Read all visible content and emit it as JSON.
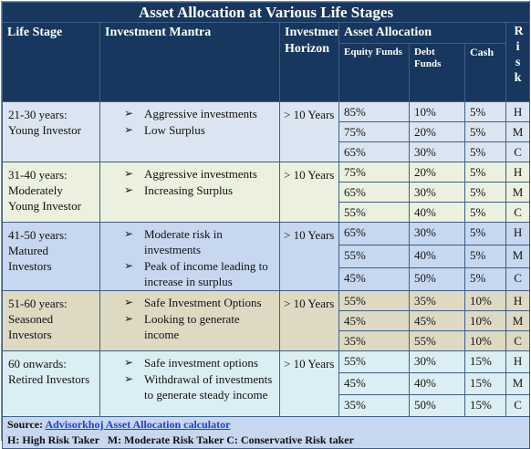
{
  "title": "Asset Allocation at Various Life Stages",
  "headers": {
    "life_stage": "Life Stage",
    "mantra": "Investment Mantra",
    "horizon": "Investment Horizon",
    "allocation": "Asset Allocation",
    "risk": "Risk",
    "equity": "Equity Funds",
    "debt": "Debt Funds",
    "cash": "Cash"
  },
  "stages": [
    {
      "stage": "21-30 years: Young Investor",
      "mantra": [
        "Aggressive investments",
        "Low Surplus"
      ],
      "horizon": "> 10 Years",
      "rows": [
        {
          "equity": "85%",
          "debt": "10%",
          "cash": "5%",
          "risk": "H"
        },
        {
          "equity": "75%",
          "debt": "20%",
          "cash": "5%",
          "risk": "M"
        },
        {
          "equity": "65%",
          "debt": "30%",
          "cash": "5%",
          "risk": "C"
        }
      ]
    },
    {
      "stage": "31-40 years: Moderately Young Investor",
      "mantra": [
        "Aggressive investments",
        "Increasing Surplus"
      ],
      "horizon": "> 10 Years",
      "rows": [
        {
          "equity": "75%",
          "debt": "20%",
          "cash": "5%",
          "risk": "H"
        },
        {
          "equity": "65%",
          "debt": "30%",
          "cash": "5%",
          "risk": "M"
        },
        {
          "equity": "55%",
          "debt": "40%",
          "cash": "5%",
          "risk": "C"
        }
      ]
    },
    {
      "stage": "41-50 years: Matured Investors",
      "mantra": [
        "Moderate risk in investments",
        "Peak of income leading to increase in surplus"
      ],
      "horizon": "> 10 Years",
      "rows": [
        {
          "equity": "65%",
          "debt": "30%",
          "cash": "5%",
          "risk": "H"
        },
        {
          "equity": "55%",
          "debt": "40%",
          "cash": "5%",
          "risk": "M"
        },
        {
          "equity": "45%",
          "debt": "50%",
          "cash": "5%",
          "risk": "C"
        }
      ]
    },
    {
      "stage": "51-60 years: Seasoned Investors",
      "mantra": [
        "Safe Investment Options",
        "Looking to generate income"
      ],
      "horizon": "> 10 Years",
      "rows": [
        {
          "equity": "55%",
          "debt": "35%",
          "cash": "10%",
          "risk": "H"
        },
        {
          "equity": "45%",
          "debt": "45%",
          "cash": "10%",
          "risk": "M"
        },
        {
          "equity": "35%",
          "debt": "55%",
          "cash": "10%",
          "risk": "C"
        }
      ]
    },
    {
      "stage": "60 onwards: Retired Investors",
      "mantra": [
        "Safe investment options",
        "Withdrawal of investments to generate steady income"
      ],
      "horizon": "> 10 Years",
      "rows": [
        {
          "equity": "55%",
          "debt": "30%",
          "cash": "15%",
          "risk": "H"
        },
        {
          "equity": "45%",
          "debt": "40%",
          "cash": "15%",
          "risk": "M"
        },
        {
          "equity": "35%",
          "debt": "50%",
          "cash": "15%",
          "risk": "C"
        }
      ]
    }
  ],
  "footer": {
    "source_label": "Source:",
    "source_link": "Advisorkhoj Asset Allocation calculator",
    "legend": "H: High Risk Taker   M: Moderate Risk Taker C: Conservative Risk taker"
  },
  "colors": {
    "header_bg": "#17375e",
    "row_backgrounds": [
      "#dbe5f1",
      "#ebf1de",
      "#c6d7ef",
      "#ddd9c3",
      "#dbeef3"
    ],
    "link": "#1f3fcf"
  },
  "icons": {
    "bullet": "arrowhead-bullet-icon"
  }
}
